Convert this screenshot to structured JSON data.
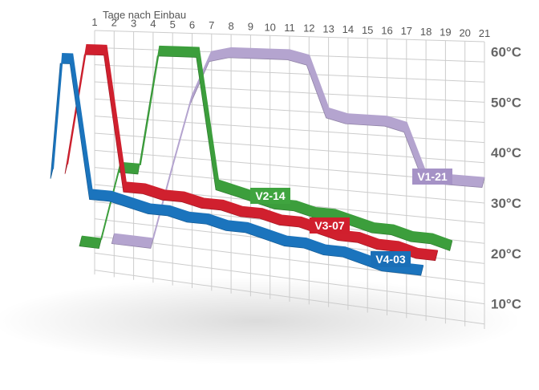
{
  "chart_data": {
    "type": "line",
    "title": "Tage nach Einbau",
    "xlabel": "",
    "ylabel": "",
    "x_ticks": [
      "1",
      "2",
      "3",
      "4",
      "5",
      "6",
      "7",
      "8",
      "9",
      "10",
      "11",
      "12",
      "13",
      "14",
      "15",
      "16",
      "17",
      "18",
      "19",
      "20",
      "21"
    ],
    "y_ticks": [
      "60°C",
      "50°C",
      "40°C",
      "30°C",
      "20°C",
      "10°C"
    ],
    "ylim": [
      5,
      62
    ],
    "grid": true,
    "series": [
      {
        "name": "V1-21",
        "color": "#b4a4cf",
        "label_color": "#a592c6",
        "x": [
          2,
          3,
          4,
          5,
          6,
          7,
          8,
          9,
          10,
          11,
          12,
          13,
          14,
          15,
          16,
          17,
          18,
          19,
          20,
          21
        ],
        "y": [
          15,
          15,
          15,
          32,
          48,
          58,
          59,
          59,
          59,
          59,
          58,
          47,
          46,
          46,
          46,
          45,
          35,
          35,
          35,
          35
        ]
      },
      {
        "name": "V2-14",
        "color": "#3c9e3c",
        "label_color": "#3fa43f",
        "x": [
          1,
          2,
          3,
          4,
          5,
          6,
          7,
          8,
          9,
          10,
          11,
          12,
          13,
          14,
          15,
          16,
          17,
          18,
          19,
          20
        ],
        "y": [
          15,
          15,
          33,
          33,
          60,
          60,
          60,
          31,
          30,
          29,
          28,
          28,
          27,
          27,
          26,
          25,
          25,
          24,
          24,
          23
        ]
      },
      {
        "name": "V3-07",
        "color": "#d0202e",
        "label_color": "#d01f2d",
        "x": [
          1,
          2,
          3,
          4,
          5,
          6,
          7,
          8,
          9,
          10,
          11,
          12,
          13,
          14,
          15,
          16,
          17,
          18,
          19,
          20
        ],
        "y": [
          33,
          61,
          61,
          30,
          30,
          29,
          29,
          28,
          28,
          27,
          27,
          26,
          26,
          25,
          24,
          24,
          23,
          23,
          22,
          22
        ]
      },
      {
        "name": "V4-03",
        "color": "#1b74bd",
        "label_color": "#1a6fb7",
        "x": [
          1,
          1.5,
          2,
          3,
          4,
          5,
          6,
          7,
          8,
          9,
          10,
          11,
          12,
          13,
          14,
          15,
          16,
          17,
          18,
          19,
          20
        ],
        "y": [
          33,
          60,
          60,
          29,
          29,
          28,
          27,
          27,
          26,
          26,
          25,
          25,
          24,
          23,
          23,
          22,
          22,
          21,
          20,
          20,
          20
        ]
      }
    ]
  }
}
